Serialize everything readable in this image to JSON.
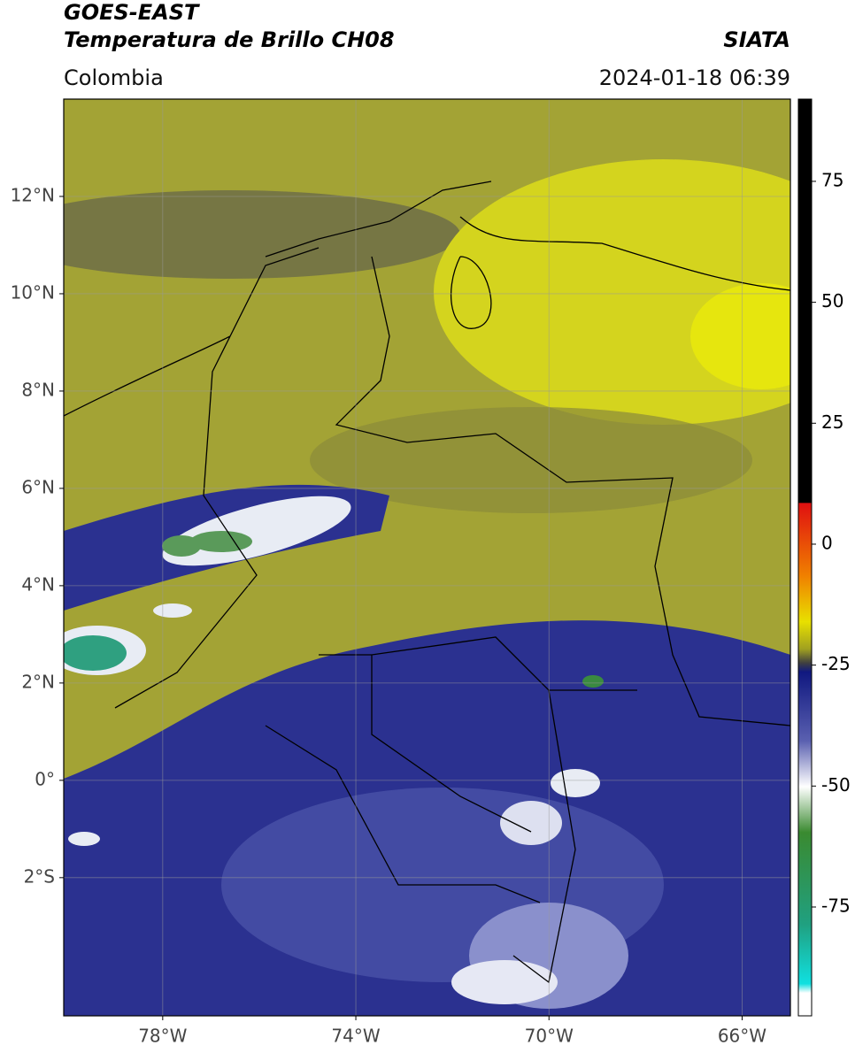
{
  "header": {
    "title": "GOES-EAST",
    "subtitle": "Temperatura de Brillo CH08",
    "brand": "SIATA",
    "region": "Colombia",
    "datetime": "2024-01-18 06:39"
  },
  "map": {
    "xlim": [
      -80.05,
      -65
    ],
    "ylim": [
      -4.84,
      14
    ],
    "grid": true,
    "xticks": [
      {
        "value": -78,
        "label": "78°W"
      },
      {
        "value": -74,
        "label": "74°W"
      },
      {
        "value": -70,
        "label": "70°W"
      },
      {
        "value": -66,
        "label": "66°W"
      }
    ],
    "yticks": [
      {
        "value": 12,
        "label": "12°N"
      },
      {
        "value": 10,
        "label": "10°N"
      },
      {
        "value": 8,
        "label": "8°N"
      },
      {
        "value": 6,
        "label": "6°N"
      },
      {
        "value": 4,
        "label": "4°N"
      },
      {
        "value": 2,
        "label": "2°N"
      },
      {
        "value": 0,
        "label": "0°"
      },
      {
        "value": -2,
        "label": "2°S"
      }
    ]
  },
  "colorbar": {
    "lim": [
      -97.5,
      92
    ],
    "ticks": [
      75,
      50,
      25,
      0,
      -25,
      -50,
      -75
    ]
  }
}
